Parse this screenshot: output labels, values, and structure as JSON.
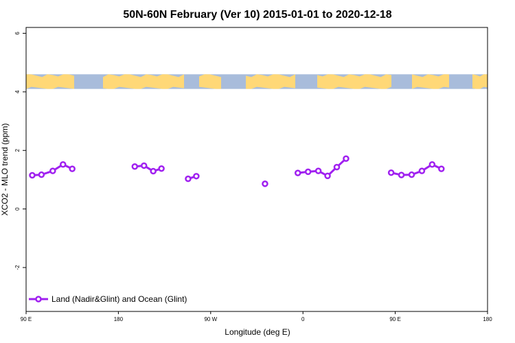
{
  "chart_data": {
    "type": "line",
    "title": "50N-60N February (Ver 10)   2015-01-01 to 2020-12-18",
    "xlabel": "Longitude (deg E)",
    "ylabel": "XCO2 - MLO trend (ppm)",
    "xlim": [
      90,
      450
    ],
    "ylim": [
      -3.5,
      6.2
    ],
    "x_ticks": [
      {
        "value": 90,
        "label": "90 E"
      },
      {
        "value": 180,
        "label": "180"
      },
      {
        "value": 270,
        "label": "90 W"
      },
      {
        "value": 360,
        "label": "0"
      },
      {
        "value": 450,
        "label": "90 E"
      },
      {
        "value": 540,
        "label": "180"
      }
    ],
    "xlim_full": [
      90,
      540
    ],
    "y_ticks": [
      6,
      4,
      2,
      0,
      -2
    ],
    "grid": false,
    "legend_position": "bottom-left",
    "series": [
      {
        "name": "Land (Nadir&Glint) and Ocean (Glint)",
        "color": "#a020f0",
        "segments": [
          [
            [
              96,
              1.15
            ],
            [
              105,
              1.17
            ],
            [
              116,
              1.3
            ],
            [
              126,
              1.52
            ],
            [
              135,
              1.37
            ]
          ],
          [
            [
              196,
              1.45
            ],
            [
              205,
              1.48
            ],
            [
              214,
              1.29
            ],
            [
              222,
              1.38
            ]
          ],
          [
            [
              248,
              1.03
            ],
            [
              256,
              1.12
            ]
          ],
          [
            [
              323,
              0.86
            ]
          ],
          [
            [
              355,
              1.23
            ],
            [
              365,
              1.27
            ],
            [
              375,
              1.3
            ],
            [
              384,
              1.13
            ],
            [
              393,
              1.43
            ],
            [
              402,
              1.72
            ]
          ],
          [
            [
              446,
              1.24
            ],
            [
              456,
              1.16
            ],
            [
              466,
              1.17
            ],
            [
              476,
              1.3
            ],
            [
              486,
              1.52
            ],
            [
              495,
              1.37
            ]
          ]
        ]
      }
    ],
    "map_band": {
      "y_min": 4.1,
      "y_max": 4.6,
      "ocean_color": "#a8bcdb",
      "land_color": "#ffd877"
    }
  }
}
